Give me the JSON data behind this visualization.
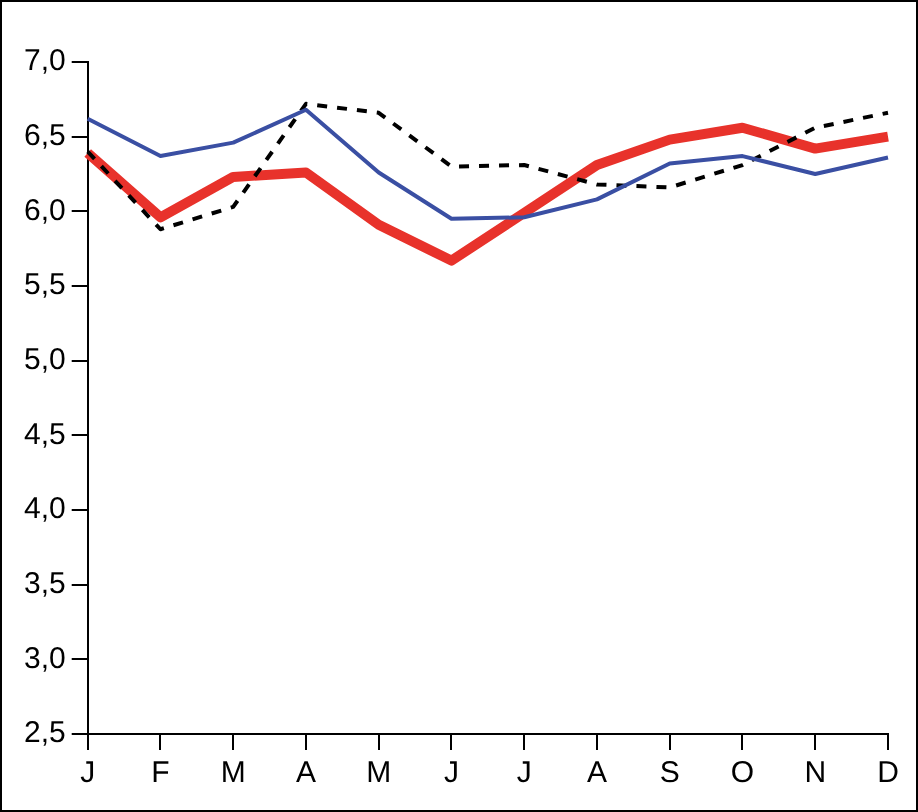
{
  "chart_data": {
    "type": "line",
    "categories": [
      "J",
      "F",
      "M",
      "A",
      "M",
      "J",
      "J",
      "A",
      "S",
      "O",
      "N",
      "D"
    ],
    "series": [
      {
        "color": "#3a4fa3",
        "values": [
          6.62,
          6.37,
          6.46,
          6.68,
          6.26,
          5.95,
          5.96,
          6.08,
          6.32,
          6.37,
          6.25,
          6.36
        ]
      },
      {
        "color": "#000000",
        "line_style": "dashed",
        "values": [
          6.4,
          5.88,
          6.03,
          6.72,
          6.66,
          6.3,
          6.31,
          6.18,
          6.16,
          6.31,
          6.56,
          6.66
        ]
      },
      {
        "color": "#e8322b",
        "values": [
          6.39,
          5.96,
          6.23,
          6.26,
          5.91,
          5.67,
          5.99,
          6.31,
          6.48,
          6.56,
          6.42,
          6.5
        ]
      }
    ],
    "ylim": [
      2.5,
      7
    ],
    "yticks": [
      {
        "value": 2.5,
        "label": "2,5"
      },
      {
        "value": 3,
        "label": "3,0"
      },
      {
        "value": 3.5,
        "label": "3,5"
      },
      {
        "value": 4,
        "label": "4,0"
      },
      {
        "value": 4.5,
        "label": "4,5"
      },
      {
        "value": 5,
        "label": "5,0"
      },
      {
        "value": 5.5,
        "label": "5,5"
      },
      {
        "value": 6,
        "label": "6,0"
      },
      {
        "value": 6.5,
        "label": "6,5"
      },
      {
        "value": 7,
        "label": "7,0"
      }
    ],
    "grid": false,
    "legend": false
  }
}
